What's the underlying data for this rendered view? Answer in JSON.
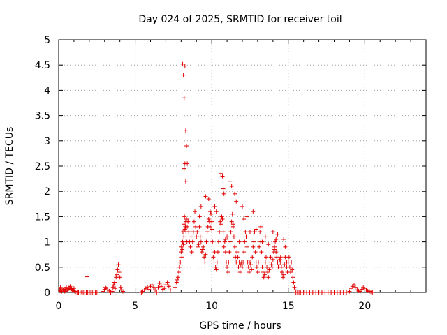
{
  "chart_data": {
    "type": "scatter",
    "title": "Day 024 of 2025, SRMTID for receiver toil",
    "xlabel": "GPS time / hours",
    "ylabel": "SRMTID / TECUs",
    "xlim": [
      0,
      24
    ],
    "ylim": [
      0,
      5
    ],
    "xticks": [
      0,
      5,
      10,
      15,
      20
    ],
    "xtick_labels": [
      "0",
      "5",
      "10",
      "15",
      "20"
    ],
    "yticks": [
      0,
      0.5,
      1,
      1.5,
      2,
      2.5,
      3,
      3.5,
      4,
      4.5,
      5
    ],
    "ytick_labels": [
      "0",
      "0.5",
      "1",
      "1.5",
      "2",
      "2.5",
      "3",
      "3.5",
      "4",
      "4.5",
      "5"
    ],
    "grid": true,
    "marker": "plus",
    "series": [
      {
        "name": "SRMTID",
        "color": "#e00000",
        "x": [
          0.05,
          0.1,
          0.15,
          0.2,
          0.3,
          0.35,
          0.45,
          0.5,
          0.6,
          0.7,
          0.75,
          0.8,
          0.9,
          1.0,
          1.05,
          1.1,
          1.2,
          1.3,
          1.4,
          1.5,
          1.6,
          1.7,
          1.8,
          1.9,
          2.0,
          2.1,
          2.2,
          2.3,
          2.4,
          2.5,
          0.12,
          0.4,
          0.55,
          0.65,
          0.85,
          0.95,
          1.85,
          2.9,
          3.0,
          3.05,
          3.1,
          3.2,
          3.3,
          3.4,
          3.5,
          3.55,
          3.6,
          3.65,
          3.7,
          3.75,
          3.8,
          3.85,
          3.9,
          3.95,
          4.0,
          4.05,
          4.1,
          4.2,
          5.4,
          5.5,
          5.6,
          5.7,
          5.8,
          5.9,
          6.0,
          6.1,
          6.2,
          6.3,
          6.4,
          6.5,
          6.6,
          6.7,
          6.8,
          6.9,
          7.0,
          7.1,
          7.2,
          7.3,
          7.6,
          7.7,
          7.75,
          7.8,
          7.85,
          7.9,
          7.95,
          8.0,
          8.02,
          8.05,
          8.08,
          8.1,
          8.12,
          8.15,
          8.18,
          8.2,
          8.22,
          8.25,
          8.28,
          8.3,
          8.32,
          8.35,
          8.38,
          8.4,
          8.45,
          8.5,
          8.55,
          8.6,
          8.65,
          8.7,
          8.75,
          8.8,
          8.85,
          8.9,
          8.95,
          9.0,
          9.05,
          9.1,
          9.15,
          9.2,
          9.25,
          9.3,
          9.35,
          9.4,
          9.45,
          9.5,
          9.55,
          9.6,
          9.65,
          9.7,
          9.75,
          9.8,
          9.85,
          9.9,
          9.95,
          10.0,
          10.05,
          10.1,
          10.15,
          10.2,
          10.25,
          10.3,
          10.35,
          10.4,
          10.45,
          10.5,
          10.55,
          10.6,
          10.65,
          10.7,
          10.75,
          10.8,
          10.85,
          10.9,
          10.95,
          11.0,
          11.05,
          11.1,
          11.15,
          11.2,
          11.25,
          11.3,
          11.35,
          11.4,
          11.45,
          11.5,
          11.55,
          11.6,
          11.65,
          11.7,
          11.75,
          11.8,
          11.85,
          11.9,
          11.95,
          12.0,
          12.05,
          12.1,
          12.15,
          12.2,
          12.25,
          12.3,
          12.35,
          12.4,
          12.45,
          12.5,
          12.55,
          12.6,
          12.65,
          12.7,
          12.75,
          12.8,
          12.85,
          12.9,
          12.95,
          13.0,
          13.05,
          13.1,
          13.15,
          13.2,
          13.25,
          13.3,
          13.35,
          13.4,
          13.45,
          13.5,
          13.55,
          13.6,
          13.65,
          13.7,
          13.75,
          13.8,
          13.85,
          13.9,
          13.95,
          14.0,
          14.05,
          14.1,
          14.15,
          14.2,
          14.25,
          14.3,
          14.35,
          14.4,
          14.45,
          14.5,
          14.55,
          14.6,
          14.65,
          14.7,
          14.75,
          14.8,
          14.85,
          14.9,
          14.95,
          15.0,
          15.05,
          15.1,
          15.15,
          15.2,
          15.25,
          15.3,
          15.35,
          15.4,
          15.45,
          15.5,
          15.6,
          15.7,
          15.8,
          15.9,
          16.0,
          16.2,
          16.4,
          16.6,
          16.8,
          17.0,
          17.2,
          17.4,
          17.6,
          17.8,
          18.0,
          18.2,
          18.4,
          18.6,
          18.8,
          19.0,
          19.1,
          19.2,
          19.3,
          19.4,
          19.5,
          19.6,
          19.7,
          19.8,
          19.9,
          20.0,
          20.1,
          20.2,
          20.3,
          20.4,
          20.5,
          8.1,
          8.15,
          8.2,
          8.3,
          8.25,
          8.35,
          8.4,
          8.2,
          8.25,
          8.3,
          10.6,
          10.7,
          10.75,
          10.8,
          11.2,
          11.3,
          11.5,
          11.6,
          12.0,
          12.3,
          12.7,
          13.2,
          13.5,
          14.0,
          14.2,
          14.3,
          14.7,
          14.8,
          9.2,
          9.3,
          9.6,
          9.8,
          9.9,
          10.0,
          10.2,
          10.3,
          10.9,
          11.0,
          11.4,
          11.8,
          12.1,
          12.5,
          12.9,
          13.3,
          13.7,
          14.1,
          14.5,
          14.9
        ],
        "y": [
          0.05,
          0.03,
          0.08,
          0.02,
          0.06,
          0.04,
          0.07,
          0.1,
          0.05,
          0.08,
          0.12,
          0.06,
          0.03,
          0.08,
          0.02,
          0.01,
          0.0,
          0.0,
          0.0,
          0.01,
          0.0,
          0.0,
          0.0,
          0.0,
          0.0,
          0.0,
          0.0,
          0.0,
          0.0,
          0.0,
          0.1,
          0.02,
          0.04,
          0.09,
          0.07,
          0.05,
          0.31,
          0.02,
          0.06,
          0.1,
          0.08,
          0.05,
          0.03,
          0.0,
          0.02,
          0.1,
          0.15,
          0.2,
          0.08,
          0.3,
          0.35,
          0.45,
          0.55,
          0.4,
          0.3,
          0.1,
          0.05,
          0.02,
          0.0,
          0.02,
          0.05,
          0.08,
          0.1,
          0.06,
          0.12,
          0.15,
          0.1,
          0.05,
          0.0,
          0.1,
          0.18,
          0.12,
          0.06,
          0.08,
          0.15,
          0.2,
          0.12,
          0.05,
          0.1,
          0.2,
          0.25,
          0.3,
          0.4,
          0.5,
          0.6,
          0.8,
          0.9,
          0.7,
          0.85,
          1.0,
          1.2,
          0.95,
          1.1,
          1.35,
          1.5,
          1.25,
          1.3,
          1.4,
          1.2,
          1.45,
          1.0,
          1.3,
          1.4,
          1.2,
          1.0,
          0.9,
          1.1,
          0.8,
          1.0,
          1.2,
          1.4,
          1.6,
          1.3,
          1.1,
          1.2,
          0.9,
          0.95,
          1.3,
          1.1,
          1.0,
          0.8,
          0.85,
          0.9,
          0.7,
          0.6,
          0.75,
          1.0,
          1.2,
          1.3,
          1.45,
          1.4,
          1.6,
          1.55,
          1.4,
          1.0,
          0.7,
          0.6,
          0.8,
          0.5,
          0.45,
          0.6,
          0.8,
          1.0,
          1.2,
          1.4,
          1.35,
          1.5,
          1.45,
          1.2,
          0.9,
          1.0,
          0.8,
          0.6,
          0.5,
          0.4,
          0.6,
          0.8,
          1.0,
          1.2,
          1.4,
          1.55,
          1.3,
          1.1,
          0.9,
          0.7,
          0.6,
          0.8,
          0.7,
          0.5,
          0.6,
          0.4,
          0.55,
          0.6,
          0.5,
          0.6,
          0.8,
          1.0,
          1.2,
          1.1,
          0.9,
          0.6,
          0.5,
          0.4,
          0.6,
          0.55,
          0.45,
          0.7,
          0.9,
          1.0,
          1.2,
          0.8,
          0.6,
          0.5,
          0.4,
          0.6,
          0.9,
          1.2,
          1.0,
          0.8,
          0.5,
          0.4,
          0.3,
          0.35,
          0.6,
          0.7,
          0.5,
          0.4,
          0.3,
          0.45,
          0.6,
          0.7,
          0.55,
          0.5,
          0.65,
          0.8,
          0.9,
          1.0,
          0.8,
          0.7,
          0.6,
          0.5,
          0.55,
          0.65,
          0.6,
          0.5,
          0.4,
          0.3,
          0.35,
          0.55,
          0.7,
          0.6,
          0.5,
          0.4,
          0.6,
          0.7,
          0.5,
          0.4,
          0.6,
          0.45,
          0.3,
          0.2,
          0.1,
          0.05,
          0.0,
          0.0,
          0.0,
          0.0,
          0.0,
          0.0,
          0.0,
          0.0,
          0.0,
          0.0,
          0.0,
          0.0,
          0.0,
          0.0,
          0.0,
          0.0,
          0.0,
          0.0,
          0.0,
          0.0,
          0.02,
          0.08,
          0.12,
          0.15,
          0.1,
          0.05,
          0.03,
          0.02,
          0.06,
          0.1,
          0.08,
          0.05,
          0.03,
          0.02,
          0.01,
          0.0,
          4.52,
          4.3,
          3.85,
          3.2,
          4.48,
          2.9,
          2.55,
          2.45,
          2.55,
          2.2,
          2.35,
          2.3,
          2.05,
          1.95,
          2.2,
          2.1,
          1.95,
          1.8,
          1.7,
          1.5,
          1.6,
          1.3,
          1.1,
          1.2,
          1.05,
          1.15,
          1.05,
          0.9,
          1.5,
          1.7,
          1.9,
          1.85,
          1.3,
          1.25,
          1.7,
          1.6,
          1.05,
          1.1,
          1.35,
          1.0,
          1.45,
          1.2,
          1.25,
          1.0,
          0.95,
          0.85,
          0.7,
          0.6
        ]
      }
    ]
  }
}
